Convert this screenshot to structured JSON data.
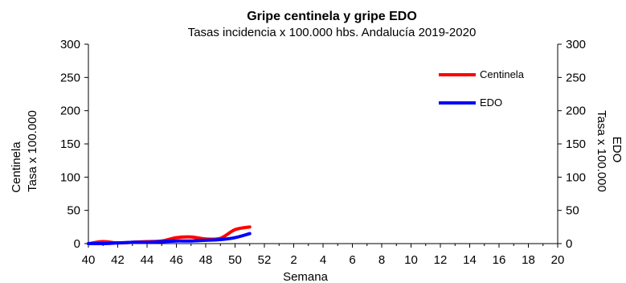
{
  "chart_data": {
    "type": "line",
    "title": "Gripe centinela y gripe EDO",
    "subtitle": "Tasas incidencia x 100.000 hbs. Andalucía 2019-2020",
    "xlabel": "Semana",
    "ylabel_left": [
      "Centinela",
      "Tasa x 100.000"
    ],
    "ylabel_right": [
      "EDO",
      "Tasa x 100.000"
    ],
    "ylim": [
      0,
      300
    ],
    "yticks": [
      "0",
      "50",
      "100",
      "150",
      "200",
      "250",
      "300"
    ],
    "xticks": [
      "40",
      "42",
      "44",
      "46",
      "48",
      "50",
      "52",
      "2",
      "4",
      "6",
      "8",
      "10",
      "12",
      "14",
      "16",
      "18",
      "20"
    ],
    "x": [
      40,
      41,
      42,
      43,
      44,
      45,
      46,
      47,
      48,
      49,
      50,
      51
    ],
    "series": [
      {
        "name": "Centinela",
        "color": "#ff0000",
        "values": [
          0,
          3,
          1,
          2,
          3,
          4,
          9,
          10,
          7,
          8,
          21,
          25
        ]
      },
      {
        "name": "EDO",
        "color": "#0000ff",
        "values": [
          0,
          0,
          1,
          2,
          2,
          3,
          4,
          4,
          5,
          6,
          9,
          15
        ]
      }
    ],
    "legend_position": "top-right",
    "grid": false
  }
}
